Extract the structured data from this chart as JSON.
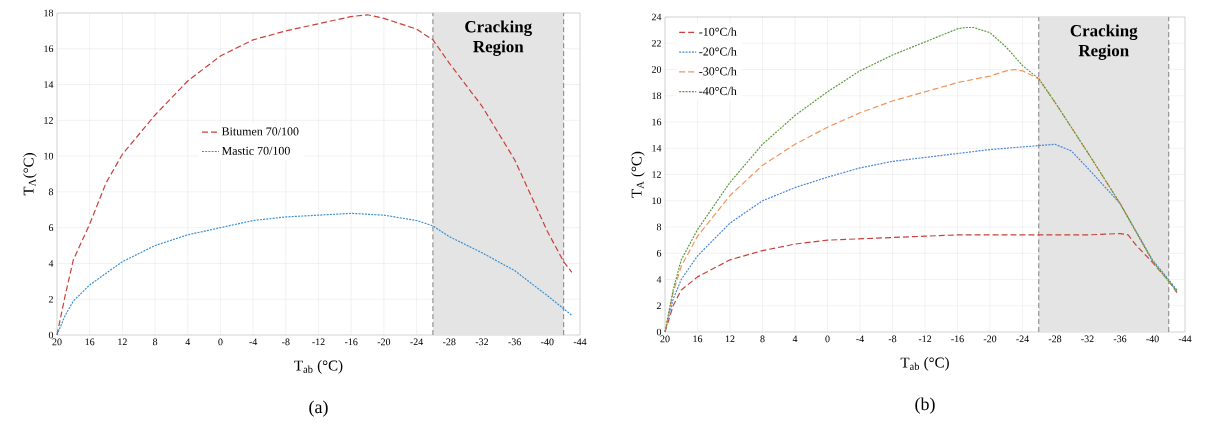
{
  "chart_data": [
    {
      "type": "line",
      "xlabel": "T$_{ab}$ (°C)",
      "ylabel": "T$_{Λ}$(°C)",
      "annotations": [
        "(a)"
      ],
      "xlim": [
        20,
        -44
      ],
      "ylim": [
        0,
        18
      ],
      "xticks": [
        20,
        16,
        12,
        8,
        4,
        0,
        -4,
        -8,
        -12,
        -16,
        -20,
        -24,
        -28,
        -32,
        -36,
        -40,
        -44
      ],
      "yticks": [
        0,
        2,
        4,
        6,
        8,
        10,
        12,
        14,
        16,
        18
      ],
      "grid": true,
      "legend": "left",
      "bands": [
        {
          "axis": "x",
          "from": -26,
          "to": -42,
          "label": "Cracking Region",
          "color": "#e4e4e4"
        }
      ],
      "ref_lines": [
        {
          "axis": "x",
          "value": -26,
          "color": "#808080",
          "line_style": "dashed"
        },
        {
          "axis": "x",
          "value": -42,
          "color": "#808080",
          "line_style": "dashed"
        }
      ],
      "series": [
        {
          "name": "Bitumen 70/100",
          "color": "#c8413b",
          "line_style": "dashed",
          "x": [
            20,
            19,
            18,
            16,
            14,
            12,
            8,
            4,
            0,
            -4,
            -8,
            -12,
            -16,
            -18,
            -20,
            -24,
            -26,
            -28,
            -32,
            -36,
            -40,
            -42,
            -43
          ],
          "values": [
            0,
            2.2,
            4.2,
            6.2,
            8.5,
            10.1,
            12.3,
            14.2,
            15.6,
            16.5,
            17.0,
            17.4,
            17.8,
            17.9,
            17.7,
            17.1,
            16.5,
            15.2,
            12.8,
            9.8,
            5.8,
            4.1,
            3.5
          ]
        },
        {
          "name": "Mastic 70/100",
          "color": "#3a8fd0",
          "line_style": "dotted",
          "x": [
            20,
            19,
            18,
            16,
            12,
            8,
            4,
            0,
            -4,
            -8,
            -12,
            -16,
            -20,
            -24,
            -26,
            -28,
            -32,
            -36,
            -40,
            -43
          ],
          "values": [
            0,
            1.1,
            1.9,
            2.8,
            4.1,
            5.0,
            5.6,
            6.0,
            6.4,
            6.6,
            6.7,
            6.8,
            6.7,
            6.4,
            6.1,
            5.5,
            4.6,
            3.6,
            2.2,
            1.1
          ]
        }
      ]
    },
    {
      "type": "line",
      "xlabel": "T$_{ab}$ (°C)",
      "ylabel": "T$_{A}$ (°C)",
      "annotations": [
        "(b)"
      ],
      "xlim": [
        20,
        -44
      ],
      "ylim": [
        0,
        24
      ],
      "xticks": [
        20,
        16,
        12,
        8,
        4,
        0,
        -4,
        -8,
        -12,
        -16,
        -20,
        -24,
        -28,
        -32,
        -36,
        -40,
        -44
      ],
      "yticks": [
        0,
        2,
        4,
        6,
        8,
        10,
        12,
        14,
        16,
        18,
        20,
        22,
        24
      ],
      "grid": true,
      "legend": "top left",
      "bands": [
        {
          "axis": "x",
          "from": -26,
          "to": -42,
          "label": "Cracking Region",
          "color": "#e4e4e4"
        }
      ],
      "ref_lines": [
        {
          "axis": "x",
          "value": -26,
          "color": "#808080",
          "line_style": "dashed"
        },
        {
          "axis": "x",
          "value": -42,
          "color": "#808080",
          "line_style": "dashed"
        }
      ],
      "series": [
        {
          "name": "-10°C/h",
          "color": "#c8413b",
          "line_style": "dashed",
          "x": [
            20,
            19,
            18,
            16,
            12,
            8,
            4,
            0,
            -4,
            -8,
            -12,
            -16,
            -20,
            -24,
            -28,
            -32,
            -36,
            -37,
            -38,
            -40,
            -42,
            -43
          ],
          "values": [
            0,
            2,
            3.2,
            4.2,
            5.5,
            6.2,
            6.7,
            7.0,
            7.1,
            7.2,
            7.3,
            7.4,
            7.4,
            7.4,
            7.4,
            7.4,
            7.5,
            7.4,
            6.6,
            5.3,
            3.9,
            3.0
          ]
        },
        {
          "name": "-20°C/h",
          "color": "#4a86d8",
          "line_style": "dotted",
          "x": [
            20,
            19,
            18,
            16,
            12,
            8,
            4,
            0,
            -4,
            -8,
            -12,
            -16,
            -20,
            -24,
            -26,
            -28,
            -30,
            -32,
            -36,
            -40,
            -43
          ],
          "values": [
            0,
            2.5,
            4,
            5.8,
            8.3,
            10,
            11,
            11.8,
            12.5,
            13,
            13.3,
            13.6,
            13.9,
            14.1,
            14.2,
            14.3,
            13.8,
            12.5,
            9.8,
            5.5,
            3.2
          ]
        },
        {
          "name": "-30°C/h",
          "color": "#f0955a",
          "line_style": "dashed",
          "x": [
            20,
            19,
            18,
            16,
            12,
            8,
            4,
            0,
            -4,
            -8,
            -12,
            -16,
            -20,
            -22,
            -23,
            -24,
            -26,
            -28,
            -32,
            -36,
            -40,
            -43
          ],
          "values": [
            0,
            3,
            5,
            7.3,
            10.4,
            12.7,
            14.3,
            15.6,
            16.7,
            17.6,
            18.3,
            19,
            19.5,
            19.9,
            20,
            19.9,
            19.3,
            17.5,
            13.7,
            9.8,
            5.4,
            3.1
          ]
        },
        {
          "name": "-40°C/h",
          "color": "#5c9a3c",
          "line_style": "dotted",
          "x": [
            20,
            19,
            18,
            16,
            12,
            8,
            4,
            0,
            -4,
            -8,
            -12,
            -16,
            -17,
            -18,
            -20,
            -22,
            -24,
            -26,
            -28,
            -32,
            -36,
            -40,
            -43
          ],
          "values": [
            0,
            3.2,
            5.5,
            7.8,
            11.4,
            14.3,
            16.5,
            18.3,
            19.9,
            21.1,
            22.1,
            23.1,
            23.2,
            23.2,
            22.8,
            21.7,
            20.3,
            19.3,
            17.5,
            13.7,
            9.8,
            5.4,
            3.1
          ]
        }
      ]
    }
  ]
}
